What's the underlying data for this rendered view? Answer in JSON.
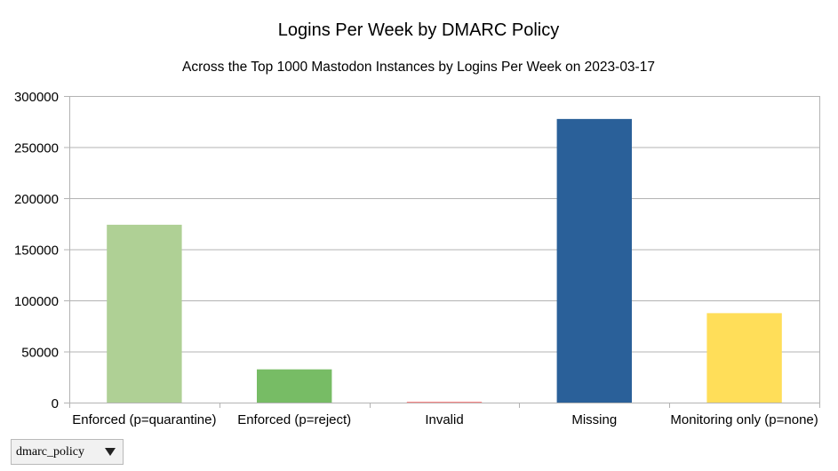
{
  "chart_data": {
    "type": "bar",
    "title": "Logins Per Week by DMARC Policy",
    "subtitle": "Across the Top 1000 Mastodon Instances by Logins Per Week on 2023-03-17",
    "xlabel": "",
    "ylabel": "",
    "categories": [
      "Enforced (p=quarantine)",
      "Enforced (p=reject)",
      "Invalid",
      "Missing",
      "Monitoring only (p=none)"
    ],
    "values": [
      174000,
      32500,
      800,
      277500,
      87500
    ],
    "colors": [
      "#afd095",
      "#77bc65",
      "#ff8080",
      "#2a6099",
      "#ffde59"
    ],
    "ylim": [
      0,
      300000
    ],
    "yticks": [
      0,
      50000,
      100000,
      150000,
      200000,
      250000,
      300000
    ],
    "ytick_labels": [
      "0",
      "50000",
      "100000",
      "150000",
      "200000",
      "250000",
      "300000"
    ],
    "grid": true,
    "legend": "none"
  },
  "filter": {
    "label": "dmarc_policy",
    "icon": "chevron-down-icon"
  }
}
